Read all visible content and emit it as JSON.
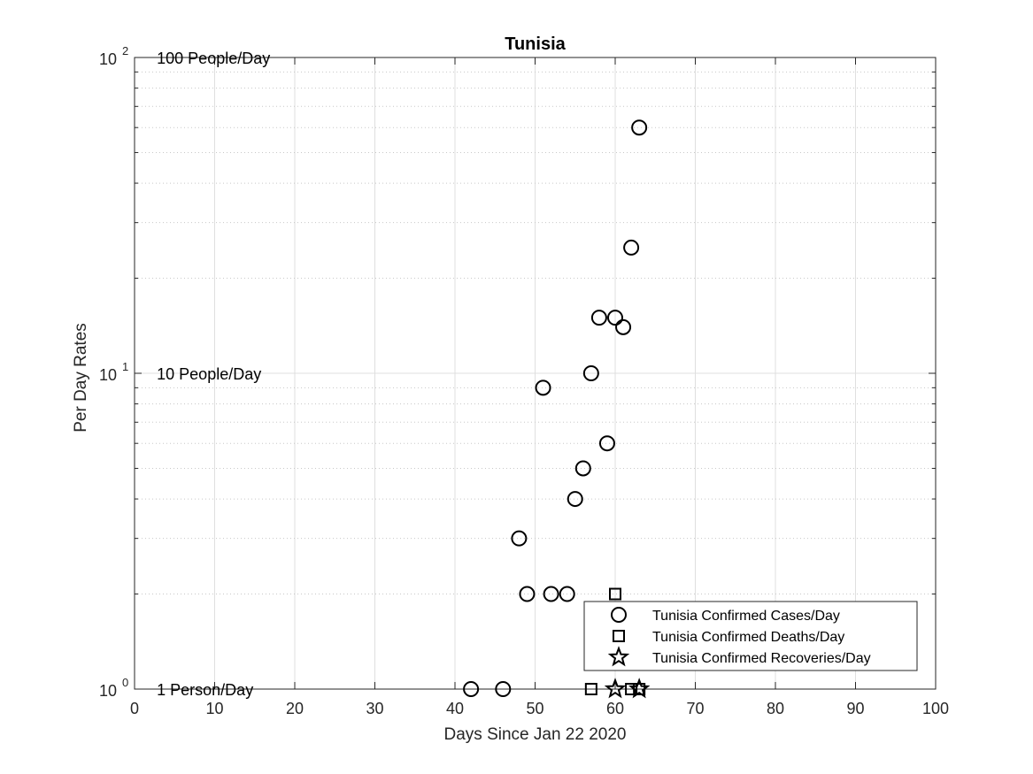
{
  "chart_data": {
    "type": "scatter",
    "title": "Tunisia",
    "xlabel": "Days Since Jan 22 2020",
    "ylabel": "Per Day Rates",
    "xlim": [
      0,
      100
    ],
    "ylim": [
      1,
      100
    ],
    "yscale": "log",
    "grid": true,
    "legend_position": "bottom-right",
    "x_ticks": [
      0,
      10,
      20,
      30,
      40,
      50,
      60,
      70,
      80,
      90,
      100
    ],
    "y_ticks": [
      {
        "value": 1,
        "base": "10",
        "exp": "0"
      },
      {
        "value": 10,
        "base": "10",
        "exp": "1"
      },
      {
        "value": 100,
        "base": "10",
        "exp": "2"
      }
    ],
    "annotations": [
      {
        "text": "100 People/Day",
        "x": 3,
        "y": 100
      },
      {
        "text": "10 People/Day",
        "x": 3,
        "y": 10
      },
      {
        "text": "1 Person/Day",
        "x": 3,
        "y": 1
      }
    ],
    "series": [
      {
        "name": "Tunisia Confirmed Cases/Day",
        "marker": "circle",
        "x": [
          42,
          46,
          48,
          49,
          51,
          52,
          54,
          55,
          56,
          57,
          58,
          59,
          60,
          61,
          62,
          63
        ],
        "y": [
          1,
          1,
          3,
          2,
          9,
          2,
          2,
          4,
          5,
          10,
          15,
          6,
          15,
          14,
          25,
          60
        ]
      },
      {
        "name": "Tunisia Confirmed Deaths/Day",
        "marker": "square",
        "x": [
          57,
          60,
          62,
          63
        ],
        "y": [
          1,
          2,
          1,
          1
        ]
      },
      {
        "name": "Tunisia Confirmed Recoveries/Day",
        "marker": "star",
        "x": [
          60,
          63
        ],
        "y": [
          1,
          1
        ]
      }
    ]
  }
}
